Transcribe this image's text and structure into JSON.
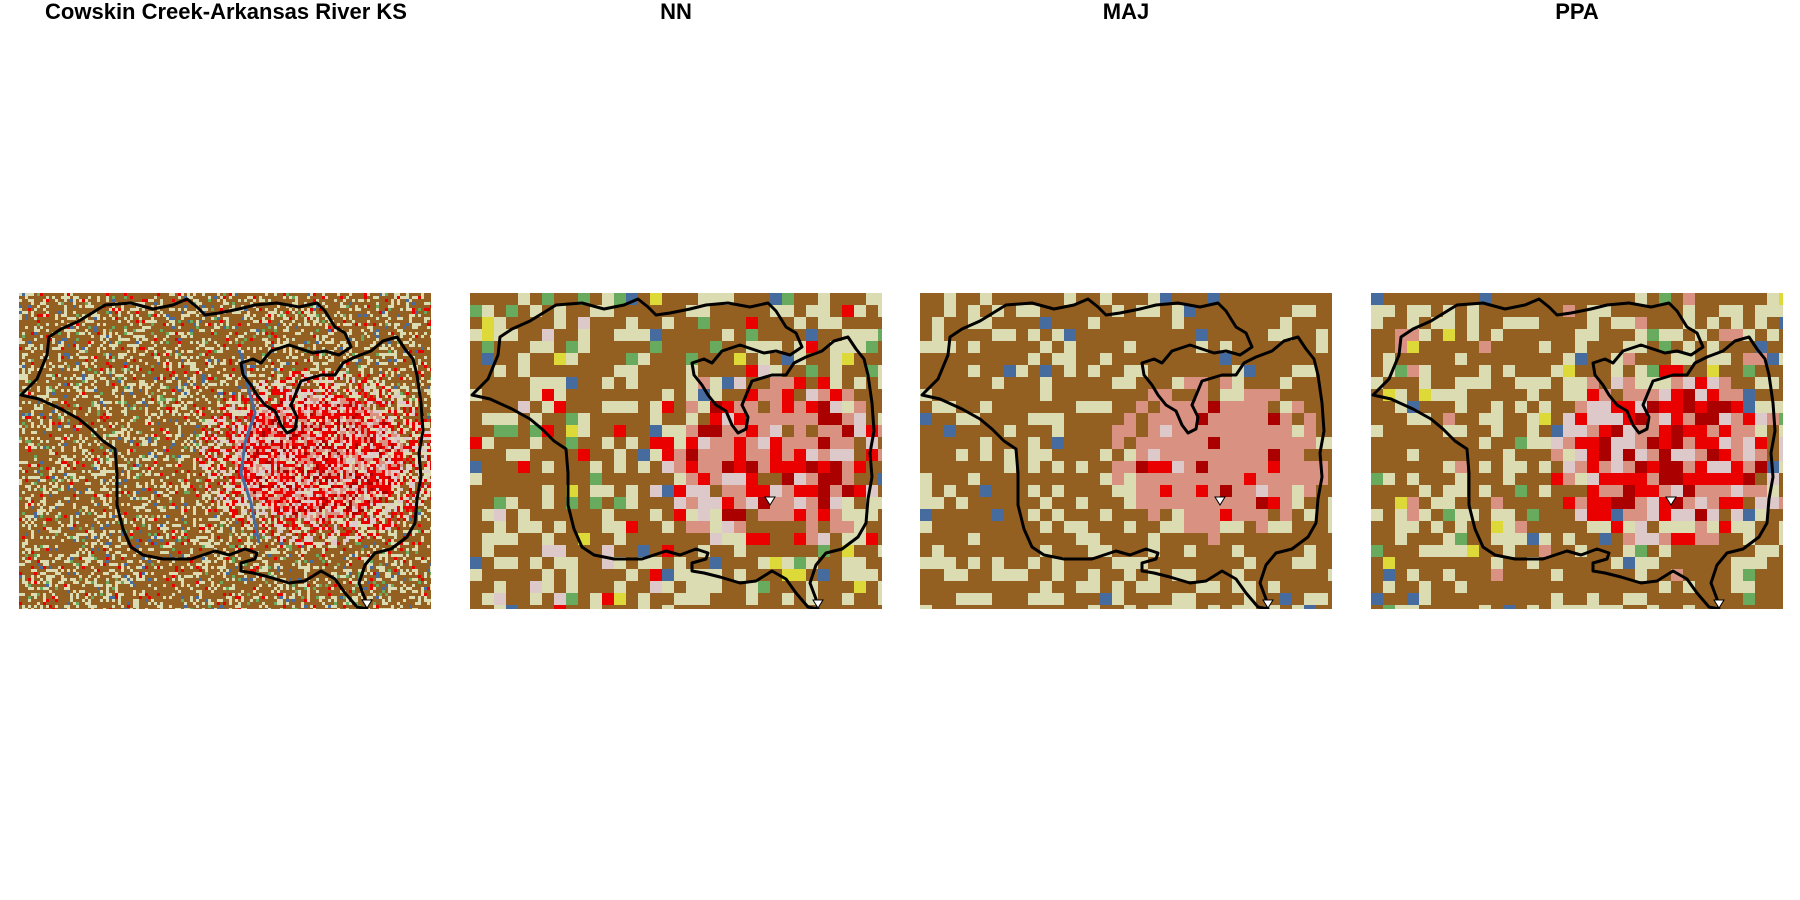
{
  "panels": [
    {
      "title": "Cowskin Creek-Arkansas River KS",
      "resolution": "fine"
    },
    {
      "title": "NN",
      "resolution": "coarse"
    },
    {
      "title": "MAJ",
      "resolution": "coarse"
    },
    {
      "title": "PPA",
      "resolution": "coarse"
    }
  ],
  "palette": {
    "cultivated": "#946021",
    "grassland": "#dcdcb3",
    "developed_open": "#ddc9c9",
    "developed_low": "#d99282",
    "developed_medium": "#eb0000",
    "developed_high": "#ab0000",
    "water": "#466b9f",
    "forest": "#68ab5f",
    "pasture": "#dcd939",
    "wetland": "#6ca2bc",
    "boundary": "#000000",
    "outlet_marker": "#ffffff"
  }
}
